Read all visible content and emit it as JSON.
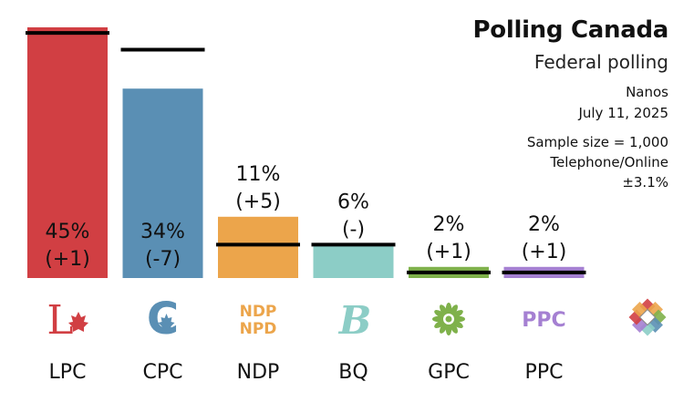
{
  "header": {
    "title": "Polling Canada",
    "subtitle": "Federal polling",
    "pollster": "Nanos",
    "date": "July 11, 2025",
    "sample_size": "Sample size = 1,000",
    "method": "Telephone/Online",
    "margin_of_error": "±3.1%"
  },
  "chart_data": {
    "type": "bar",
    "categories": [
      "LPC",
      "CPC",
      "NDP",
      "BQ",
      "GPC",
      "PPC"
    ],
    "values": [
      45,
      34,
      11,
      6,
      2,
      2
    ],
    "previous_values": [
      44,
      41,
      6,
      6,
      1,
      1
    ],
    "value_labels": [
      "45%",
      "34%",
      "11%",
      "6%",
      "2%",
      "2%"
    ],
    "change_labels": [
      "(+1)",
      "(-7)",
      "(+5)",
      "(-)",
      "(+1)",
      "(+1)"
    ],
    "colors": [
      "#d13f43",
      "#5a8fb4",
      "#eca54b",
      "#8ccdc6",
      "#7fb14b",
      "#a580d2"
    ],
    "marker_color": "#000000",
    "party_logos": {
      "LPC": "L",
      "CPC": "C",
      "NDP": [
        "NDP",
        "NPD"
      ],
      "BQ": "B",
      "GPC": "green-flower-icon",
      "PPC": "PPC"
    },
    "ylim": [
      0,
      45
    ],
    "title": "",
    "xlabel": "",
    "ylabel": ""
  }
}
